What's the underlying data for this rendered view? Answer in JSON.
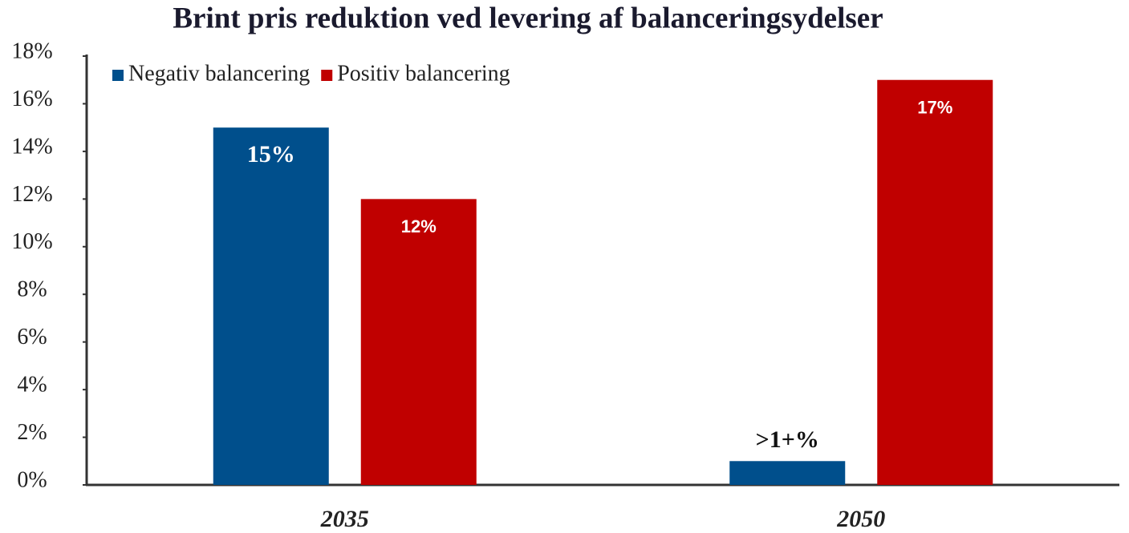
{
  "chart_data": {
    "type": "bar",
    "title": "Brint pris reduktion ved levering af  balanceringsydelser",
    "categories": [
      "2035",
      "2050"
    ],
    "series": [
      {
        "name": "Negativ balancering",
        "color": "#004f8c",
        "values": [
          15,
          1
        ],
        "value_labels": [
          "15%",
          ">1+%"
        ]
      },
      {
        "name": "Positiv balancering",
        "color": "#c00000",
        "values": [
          12,
          17
        ],
        "value_labels": [
          "12%",
          "17%"
        ]
      }
    ],
    "ylim": [
      0,
      18
    ],
    "yticks": [
      {
        "value": 0,
        "label": "0%"
      },
      {
        "value": 2,
        "label": "2%"
      },
      {
        "value": 4,
        "label": "4%"
      },
      {
        "value": 6,
        "label": "6%"
      },
      {
        "value": 8,
        "label": "8%"
      },
      {
        "value": 10,
        "label": "10%"
      },
      {
        "value": 12,
        "label": "12%"
      },
      {
        "value": 14,
        "label": "14%"
      },
      {
        "value": 16,
        "label": "16%"
      },
      {
        "value": 18,
        "label": "18%"
      }
    ],
    "legend": "top-left"
  }
}
